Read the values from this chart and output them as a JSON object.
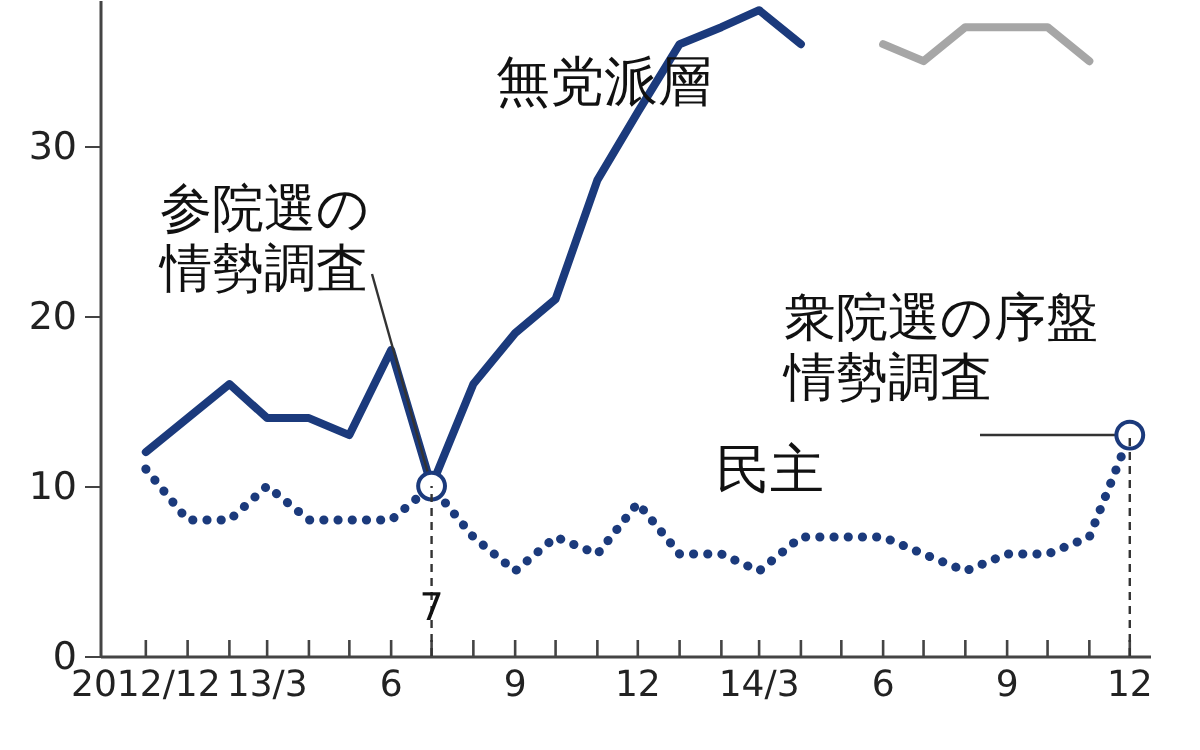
{
  "chart_data": {
    "type": "line",
    "x": [
      "2012-12",
      "2013-01",
      "2013-02",
      "2013-03",
      "2013-04",
      "2013-05",
      "2013-06",
      "2013-07",
      "2013-08",
      "2013-09",
      "2013-10",
      "2013-11",
      "2013-12",
      "2014-01",
      "2014-02",
      "2014-03",
      "2014-04",
      "2014-05",
      "2014-06",
      "2014-07",
      "2014-08",
      "2014-09",
      "2014-10",
      "2014-11",
      "2014-12"
    ],
    "series": [
      {
        "name": "無党派層",
        "color": "#1b3a7c",
        "line_style": "solid",
        "values": [
          12,
          14,
          16,
          14,
          14,
          13,
          18,
          10,
          16,
          19,
          21,
          28,
          32,
          36,
          37,
          38,
          36,
          null,
          null,
          null,
          null,
          null,
          null,
          null,
          13
        ]
      },
      {
        "name": "民主",
        "color": "#1b3a7c",
        "line_style": "dotted",
        "values": [
          11,
          8,
          8,
          10,
          8,
          8,
          8,
          10,
          7,
          5,
          7,
          6,
          9,
          6,
          6,
          5,
          7,
          7,
          7,
          6,
          5,
          6,
          6,
          7,
          13
        ]
      },
      {
        "color": "#a6a6a6",
        "line_style": "solid",
        "values": [
          null,
          null,
          null,
          null,
          null,
          null,
          null,
          null,
          null,
          null,
          null,
          null,
          null,
          null,
          null,
          null,
          null,
          null,
          36,
          35,
          37,
          37,
          37,
          35,
          null
        ]
      }
    ],
    "xlim": [
      "2012-10-28",
      "2014-12-16"
    ],
    "xticks": [
      {
        "value": "2012-12",
        "label": "2012/12"
      },
      {
        "value": "2013-01",
        "label": null
      },
      {
        "value": "2013-02",
        "label": null
      },
      {
        "value": "2013-03",
        "label": "13/3"
      },
      {
        "value": "2013-04",
        "label": null
      },
      {
        "value": "2013-05",
        "label": null
      },
      {
        "value": "2013-06",
        "label": "6"
      },
      {
        "value": "2013-07",
        "label": null
      },
      {
        "value": "2013-08",
        "label": null
      },
      {
        "value": "2013-09",
        "label": "9"
      },
      {
        "value": "2013-10",
        "label": null
      },
      {
        "value": "2013-11",
        "label": null
      },
      {
        "value": "2013-12",
        "label": "12"
      },
      {
        "value": "2014-01",
        "label": null
      },
      {
        "value": "2014-02",
        "label": null
      },
      {
        "value": "2014-03",
        "label": "14/3"
      },
      {
        "value": "2014-04",
        "label": null
      },
      {
        "value": "2014-05",
        "label": null
      },
      {
        "value": "2014-06",
        "label": "6"
      },
      {
        "value": "2014-07",
        "label": null
      },
      {
        "value": "2014-08",
        "label": null
      },
      {
        "value": "2014-09",
        "label": "9"
      },
      {
        "value": "2014-10",
        "label": null
      },
      {
        "value": "2014-11",
        "label": null
      },
      {
        "value": "2014-12",
        "label": "12"
      }
    ],
    "ylim": [
      0,
      38.6
    ],
    "yticks": [
      0,
      10,
      20,
      30
    ],
    "grid": false,
    "ref_lines": [
      {
        "axis": "x",
        "value": "2013-07",
        "label": "7",
        "line_style": "dashed"
      },
      {
        "axis": "x",
        "value": "2014-12",
        "label": null,
        "line_style": "dashed"
      }
    ],
    "annotations": [
      {
        "text": "参院選の情勢調査",
        "x": "2013-07",
        "y": 10
      },
      {
        "text": "衆院選の序盤情勢調査",
        "x": "2014-12",
        "y": 13
      }
    ]
  }
}
